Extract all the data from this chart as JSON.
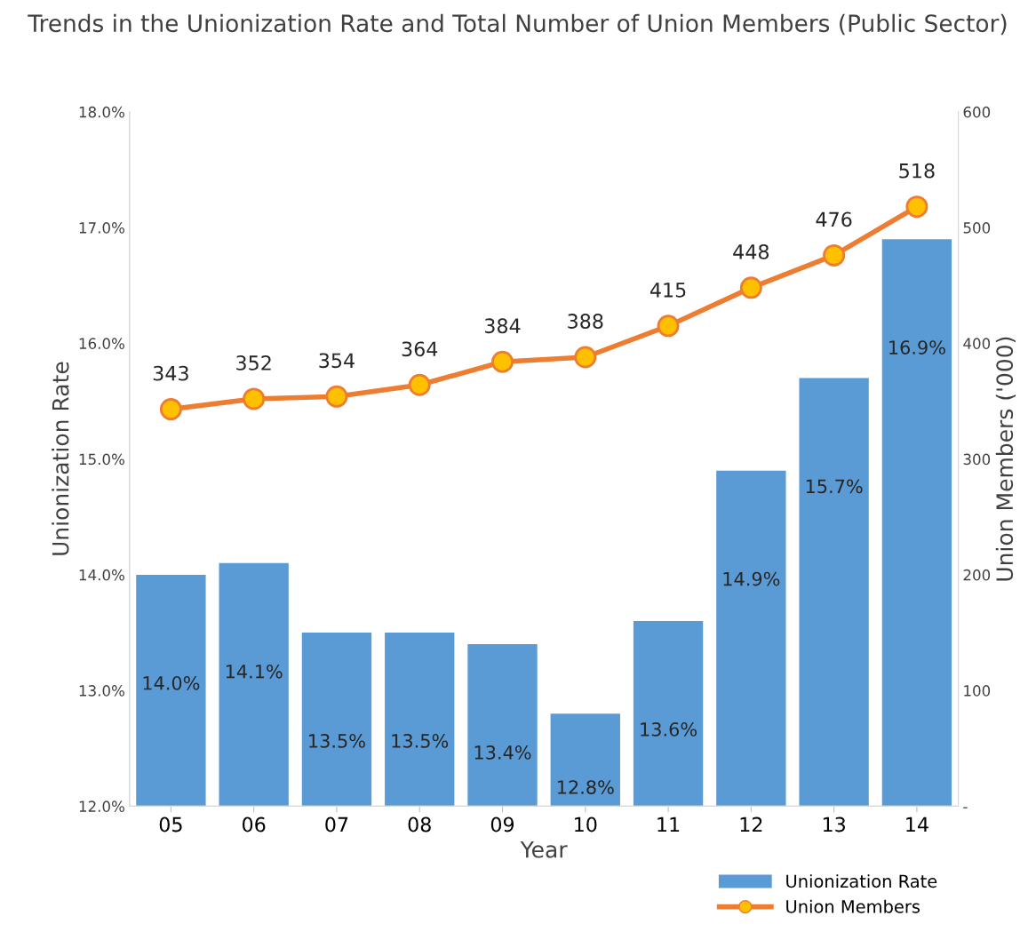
{
  "chart_data": {
    "type": "bar",
    "title": "Trends in the Unionization Rate and Total Number of Union Members (Public Sector)",
    "xlabel": "Year",
    "ylabel": "Unionization Rate",
    "y2label": "Union Members ('000)",
    "categories": [
      "05",
      "06",
      "07",
      "08",
      "09",
      "10",
      "11",
      "12",
      "13",
      "14"
    ],
    "series": [
      {
        "name": "Unionization Rate",
        "color": "#5b9bd5",
        "values": [
          14.0,
          14.1,
          13.5,
          13.5,
          13.4,
          12.8,
          13.6,
          14.9,
          15.7,
          16.9
        ],
        "value_labels": [
          "14.0%",
          "14.1%",
          "13.5%",
          "13.5%",
          "13.4%",
          "12.8%",
          "13.6%",
          "14.9%",
          "15.7%",
          "16.9%"
        ]
      },
      {
        "name": "Union Members",
        "type": "line",
        "axis": "y2",
        "color": "#ed7d31",
        "marker": "circle",
        "values": [
          343,
          352,
          354,
          364,
          384,
          388,
          415,
          448,
          476,
          518
        ],
        "value_labels": [
          "343",
          "352",
          "354",
          "364",
          "384",
          "388",
          "415",
          "448",
          "476",
          "518"
        ]
      }
    ],
    "ylim": [
      12,
      18
    ],
    "yticks": [
      {
        "value": 12,
        "label": "12.0%"
      },
      {
        "value": 13,
        "label": "13.0%"
      },
      {
        "value": 14,
        "label": "14.0%"
      },
      {
        "value": 15,
        "label": "15.0%"
      },
      {
        "value": 16,
        "label": "16.0%"
      },
      {
        "value": 17,
        "label": "17.0%"
      },
      {
        "value": 18,
        "label": "18.0%"
      }
    ],
    "y2lim": [
      0,
      600
    ],
    "y2ticks": [
      {
        "value": 0,
        "label": "-"
      },
      100,
      200,
      300,
      400,
      500,
      600
    ],
    "grid": false,
    "legend": "bottom right"
  }
}
